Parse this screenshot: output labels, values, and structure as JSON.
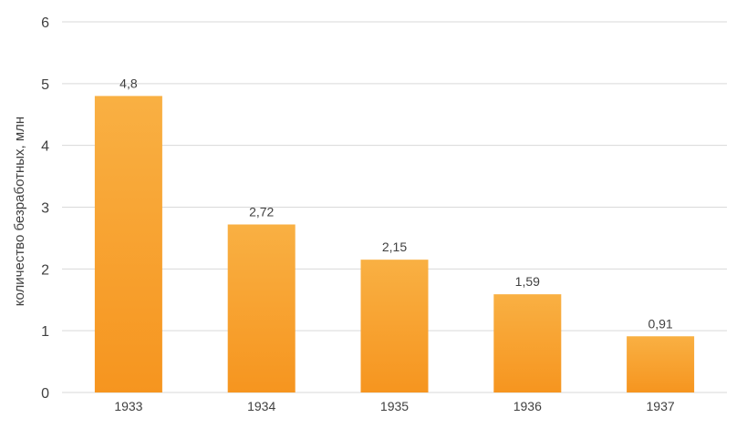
{
  "chart_data": {
    "type": "bar",
    "categories": [
      "1933",
      "1934",
      "1935",
      "1936",
      "1937"
    ],
    "values": [
      4.8,
      2.72,
      2.15,
      1.59,
      0.91
    ],
    "value_labels": [
      "4,8",
      "2,72",
      "2,15",
      "1,59",
      "0,91"
    ],
    "title": "",
    "xlabel": "",
    "ylabel": "количество безработных, млн",
    "ylim": [
      0,
      6
    ],
    "yticks": [
      "0",
      "1",
      "2",
      "3",
      "4",
      "5",
      "6"
    ],
    "grid": true,
    "legend": "none",
    "colors": {
      "bar_top": "#F9B043",
      "bar_bottom": "#F6951F",
      "grid": "#D9D9D9",
      "text": "#404040"
    }
  }
}
